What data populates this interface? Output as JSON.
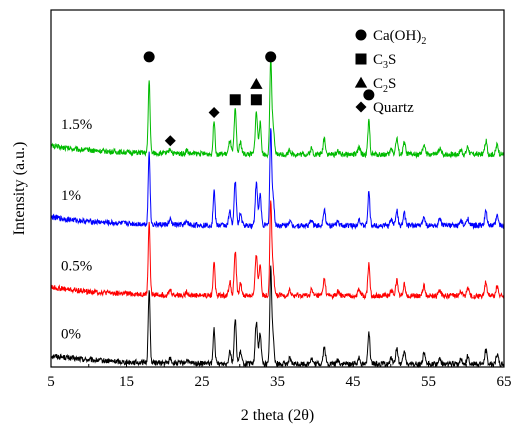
{
  "chart_data": {
    "type": "line",
    "title": "",
    "xlabel": "2 theta (2θ)",
    "ylabel": "Intensity (a.u.)",
    "xlim": [
      5,
      65
    ],
    "x_ticks": [
      5,
      15,
      25,
      35,
      45,
      55,
      65
    ],
    "y_ticks_shown": false,
    "grid": false,
    "legend_position": "top-right",
    "legend": [
      {
        "marker": "circle",
        "parts": [
          [
            "Ca(OH)",
            false
          ],
          [
            "2",
            true
          ]
        ]
      },
      {
        "marker": "square",
        "parts": [
          [
            "C",
            false
          ],
          [
            "3",
            true
          ],
          [
            "S",
            false
          ]
        ]
      },
      {
        "marker": "triangle",
        "parts": [
          [
            "C",
            false
          ],
          [
            "2",
            true
          ],
          [
            "S",
            false
          ]
        ]
      },
      {
        "marker": "diamond",
        "parts": [
          [
            "Quartz",
            false
          ]
        ]
      }
    ],
    "peaks": [
      {
        "x": 18.0,
        "h": 7.5,
        "w": 0.12
      },
      {
        "x": 20.8,
        "h": 0.5,
        "w": 0.15
      },
      {
        "x": 23.0,
        "h": 0.35,
        "w": 0.15
      },
      {
        "x": 26.6,
        "h": 3.6,
        "w": 0.12
      },
      {
        "x": 28.7,
        "h": 1.4,
        "w": 0.15
      },
      {
        "x": 29.4,
        "h": 4.5,
        "w": 0.14
      },
      {
        "x": 30.1,
        "h": 1.2,
        "w": 0.15
      },
      {
        "x": 32.2,
        "h": 4.3,
        "w": 0.15
      },
      {
        "x": 32.7,
        "h": 3.2,
        "w": 0.14
      },
      {
        "x": 34.1,
        "h": 9.5,
        "w": 0.12
      },
      {
        "x": 34.4,
        "h": 3.0,
        "w": 0.15
      },
      {
        "x": 36.6,
        "h": 0.5,
        "w": 0.15
      },
      {
        "x": 39.5,
        "h": 0.6,
        "w": 0.15
      },
      {
        "x": 41.2,
        "h": 1.7,
        "w": 0.15
      },
      {
        "x": 43.0,
        "h": 0.4,
        "w": 0.15
      },
      {
        "x": 45.8,
        "h": 0.7,
        "w": 0.15
      },
      {
        "x": 47.1,
        "h": 3.4,
        "w": 0.13
      },
      {
        "x": 50.1,
        "h": 0.6,
        "w": 0.15
      },
      {
        "x": 50.8,
        "h": 1.6,
        "w": 0.15
      },
      {
        "x": 51.8,
        "h": 1.2,
        "w": 0.15
      },
      {
        "x": 54.4,
        "h": 1.0,
        "w": 0.15
      },
      {
        "x": 56.5,
        "h": 0.6,
        "w": 0.15
      },
      {
        "x": 59.3,
        "h": 0.5,
        "w": 0.15
      },
      {
        "x": 60.2,
        "h": 0.8,
        "w": 0.15
      },
      {
        "x": 62.6,
        "h": 1.4,
        "w": 0.15
      },
      {
        "x": 64.1,
        "h": 1.0,
        "w": 0.15
      }
    ],
    "series": [
      {
        "name": "0%",
        "color": "#000000",
        "offset": 0.0
      },
      {
        "name": "0.5%",
        "color": "#ff0000",
        "offset": 7.0
      },
      {
        "name": "1%",
        "color": "#0000ff",
        "offset": 14.2
      },
      {
        "name": "1.5%",
        "color": "#00bb00",
        "offset": 21.5
      }
    ],
    "annotations": [
      {
        "marker": "circle",
        "x": 18.0,
        "y": 31.5
      },
      {
        "marker": "diamond",
        "x": 20.8,
        "y": 22.9
      },
      {
        "marker": "diamond",
        "x": 26.6,
        "y": 25.8
      },
      {
        "marker": "square",
        "x": 29.4,
        "y": 27.1
      },
      {
        "marker": "square",
        "x": 32.2,
        "y": 27.1
      },
      {
        "marker": "triangle",
        "x": 32.2,
        "y": 28.7
      },
      {
        "marker": "circle",
        "x": 34.1,
        "y": 31.5
      },
      {
        "marker": "circle",
        "x": 47.1,
        "y": 27.6
      }
    ]
  }
}
